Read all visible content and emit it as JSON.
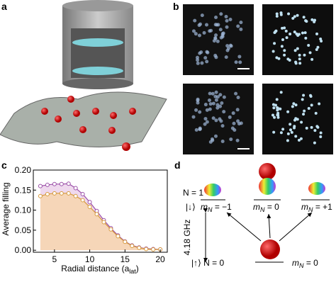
{
  "panels": {
    "a": "a",
    "b": "b",
    "c": "c",
    "d": "d"
  },
  "chart_data": {
    "type": "line",
    "ylabel": "Average filling",
    "xlabel": "Radial distance (a",
    "xlabel_sub": "lat",
    "xlabel_end": ")",
    "x": [
      3,
      4,
      5,
      6,
      7,
      8,
      9,
      10,
      11,
      12,
      13,
      14,
      15,
      16,
      17,
      18,
      19,
      20
    ],
    "series": [
      {
        "color": "#9b4fa8",
        "fill": "#efd9ee",
        "values": [
          0.16,
          0.163,
          0.165,
          0.165,
          0.166,
          0.155,
          0.14,
          0.12,
          0.098,
          0.075,
          0.055,
          0.037,
          0.022,
          0.012,
          0.007,
          0.004,
          0.003,
          0.002
        ]
      },
      {
        "color": "#d79a3c",
        "fill": "#f6d6b8",
        "values": [
          0.135,
          0.14,
          0.142,
          0.142,
          0.142,
          0.135,
          0.125,
          0.108,
          0.09,
          0.07,
          0.052,
          0.035,
          0.021,
          0.011,
          0.006,
          0.003,
          0.002,
          0.002
        ]
      }
    ],
    "xlim": [
      2,
      21
    ],
    "ylim": [
      -0.005,
      0.2
    ],
    "xticks": [
      5,
      10,
      15,
      20
    ],
    "yticks": [
      {
        "value": 0,
        "label": "0.00"
      },
      {
        "value": 0.05,
        "label": "0.05"
      },
      {
        "value": 0.1,
        "label": "0.10"
      },
      {
        "value": 0.15,
        "label": "0.15"
      },
      {
        "value": 0.2,
        "label": "0.20"
      }
    ]
  },
  "diagram": {
    "n1": "N = 1",
    "down": "|↓⟩",
    "levels": [
      {
        "m": "m",
        "sub": "N",
        "eq": " = −1"
      },
      {
        "m": "m",
        "sub": "N",
        "eq": " = 0"
      },
      {
        "m": "m",
        "sub": "N",
        "eq": " = +1"
      }
    ],
    "freq": "4.18 GHz",
    "up": "|↑⟩ N = 0",
    "ground": {
      "m": "m",
      "sub": "N",
      "eq": " = 0"
    }
  }
}
